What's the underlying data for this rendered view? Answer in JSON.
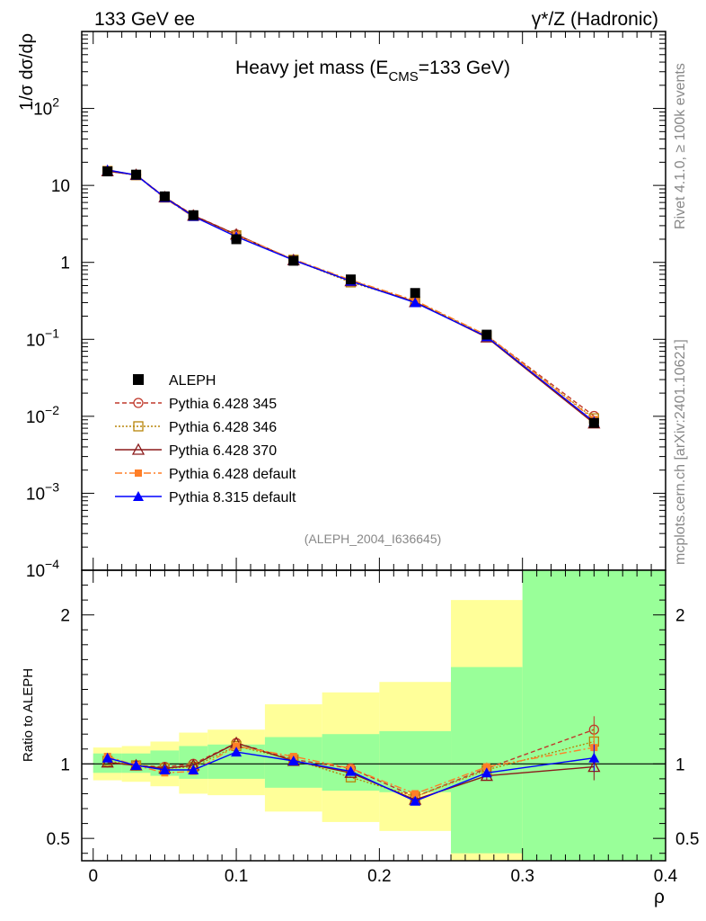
{
  "header": {
    "left": "133 GeV ee",
    "right": "γ*/Z (Hadronic)"
  },
  "side": {
    "rivet": "Rivet 4.1.0, ≥ 100k events",
    "mcplots": "mcplots.cern.ch [arXiv:2401.10621]"
  },
  "chart_data": [
    {
      "type": "line",
      "panel": "main",
      "title_main": "Heavy jet mass (E",
      "title_sub": "CMS",
      "title_tail": "=133 GeV)",
      "ylabel": "1/σ dσ/dρ",
      "yscale": "log",
      "ylim": [
        0.0001,
        1000
      ],
      "xlim": [
        -0.008,
        0.4
      ],
      "x_tick_labels": [
        "0",
        "0.1",
        "0.2",
        "0.3",
        "0.4"
      ],
      "y_tick_labels": [
        {
          "base": "10",
          "exp": "−4"
        },
        {
          "base": "10",
          "exp": "−3"
        },
        {
          "base": "10",
          "exp": "−2"
        },
        {
          "base": "10",
          "exp": "−1"
        },
        {
          "base": "1",
          "exp": ""
        },
        {
          "base": "10",
          "exp": ""
        },
        {
          "base": "10",
          "exp": "2"
        }
      ],
      "ref_label": "(ALEPH_2004_I636645)",
      "x": [
        0.01,
        0.03,
        0.05,
        0.07,
        0.1,
        0.14,
        0.18,
        0.225,
        0.275,
        0.35
      ],
      "data": {
        "name": "ALEPH",
        "values": [
          15.2,
          13.8,
          7.2,
          4.1,
          2.0,
          1.05,
          0.6,
          0.4,
          0.115,
          0.0082
        ]
      },
      "series": [
        {
          "name": "Pythia 6.428 345",
          "color": "#c0392b",
          "values": [
            15.3,
            13.7,
            7.05,
            4.1,
            2.3,
            1.08,
            0.58,
            0.31,
            0.112,
            0.0101
          ]
        },
        {
          "name": "Pythia 6.428 346",
          "color": "#b8860b",
          "values": [
            15.4,
            13.6,
            6.95,
            4.0,
            2.25,
            1.08,
            0.55,
            0.31,
            0.11,
            0.0094
          ]
        },
        {
          "name": "Pythia 6.428 370",
          "color": "#8b1a1a",
          "values": [
            15.3,
            13.7,
            7.0,
            4.05,
            2.3,
            1.07,
            0.57,
            0.305,
            0.106,
            0.0081
          ]
        },
        {
          "name": "Pythia 6.428 default",
          "color": "#ff7f27",
          "values": [
            16.0,
            13.6,
            6.8,
            3.9,
            2.25,
            1.1,
            0.59,
            0.32,
            0.113,
            0.0091
          ]
        },
        {
          "name": "Pythia 8.315 default",
          "color": "#0000ff",
          "values": [
            15.9,
            13.6,
            6.95,
            3.95,
            2.16,
            1.07,
            0.57,
            0.3,
            0.108,
            0.0085
          ]
        }
      ]
    },
    {
      "type": "line",
      "panel": "ratio",
      "ylabel": "Ratio to ALEPH",
      "xlabel": "ρ",
      "ylim": [
        0.35,
        2.3
      ],
      "y_tick_labels": [
        "0.5",
        "1",
        "2"
      ],
      "bins": [
        [
          0.0,
          0.02
        ],
        [
          0.02,
          0.04
        ],
        [
          0.04,
          0.06
        ],
        [
          0.06,
          0.08
        ],
        [
          0.08,
          0.12
        ],
        [
          0.12,
          0.16
        ],
        [
          0.16,
          0.2
        ],
        [
          0.2,
          0.25
        ],
        [
          0.25,
          0.3
        ],
        [
          0.3,
          0.4
        ]
      ],
      "band_inner": [
        [
          0.94,
          1.07
        ],
        [
          0.94,
          1.07
        ],
        [
          0.92,
          1.09
        ],
        [
          0.9,
          1.12
        ],
        [
          0.9,
          1.13
        ],
        [
          0.84,
          1.18
        ],
        [
          0.82,
          1.2
        ],
        [
          0.81,
          1.22
        ],
        [
          0.4,
          1.65
        ],
        [
          0.35,
          2.3
        ]
      ],
      "band_outer": [
        [
          0.89,
          1.11
        ],
        [
          0.88,
          1.12
        ],
        [
          0.85,
          1.15
        ],
        [
          0.8,
          1.21
        ],
        [
          0.79,
          1.23
        ],
        [
          0.68,
          1.4
        ],
        [
          0.61,
          1.48
        ],
        [
          0.55,
          1.55
        ],
        [
          0.35,
          2.1
        ],
        [
          0.35,
          2.3
        ]
      ],
      "series": [
        {
          "name": "Pythia 6.428 345",
          "values": [
            1.01,
            0.99,
            0.98,
            1.0,
            1.14,
            1.03,
            0.97,
            0.78,
            0.97,
            1.23
          ]
        },
        {
          "name": "Pythia 6.428 346",
          "values": [
            1.02,
            0.99,
            0.97,
            0.98,
            1.12,
            1.03,
            0.91,
            0.78,
            0.96,
            1.15
          ]
        },
        {
          "name": "Pythia 6.428 370",
          "values": [
            1.01,
            0.99,
            0.97,
            0.99,
            1.14,
            1.02,
            0.94,
            0.76,
            0.92,
            0.98
          ]
        },
        {
          "name": "Pythia 6.428 default",
          "values": [
            1.05,
            0.99,
            0.94,
            0.95,
            1.12,
            1.05,
            0.97,
            0.8,
            0.98,
            1.11
          ]
        },
        {
          "name": "Pythia 8.315 default",
          "values": [
            1.04,
            0.99,
            0.96,
            0.96,
            1.08,
            1.02,
            0.95,
            0.75,
            0.94,
            1.04
          ]
        }
      ],
      "errors": [
        0.0,
        0.0,
        0.0,
        0.0,
        0.0,
        0.0,
        0.0,
        0.0,
        0.03,
        0.09
      ]
    }
  ]
}
